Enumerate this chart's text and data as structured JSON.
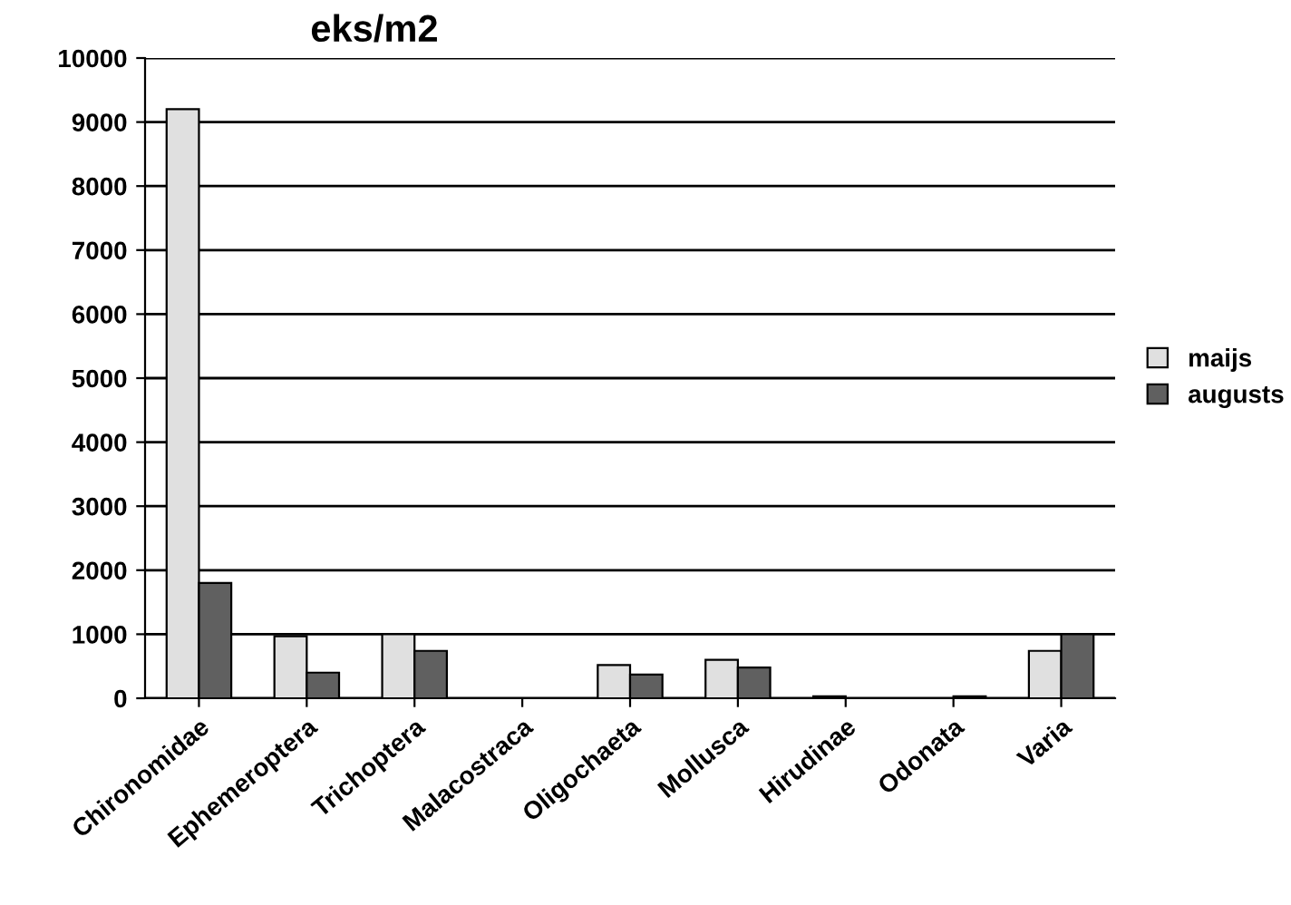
{
  "chart_data": {
    "type": "bar",
    "title": "eks/m2",
    "categories": [
      "Chironomidae",
      "Ephemeroptera",
      "Trichoptera",
      "Malacostraca",
      "Oligochaeta",
      "Mollusca",
      "Hirudinae",
      "Odonata",
      "Varia"
    ],
    "series": [
      {
        "name": "maijs",
        "color": "#e0e0e0",
        "values": [
          9200,
          970,
          1000,
          0,
          520,
          600,
          30,
          0,
          740
        ]
      },
      {
        "name": "augusts",
        "color": "#606060",
        "values": [
          1800,
          400,
          740,
          0,
          370,
          480,
          0,
          30,
          1000
        ]
      }
    ],
    "ylim": [
      0,
      10000
    ],
    "yticks": [
      0,
      1000,
      2000,
      3000,
      4000,
      5000,
      6000,
      7000,
      8000,
      9000,
      10000
    ],
    "grid": "y",
    "legend": "right"
  }
}
